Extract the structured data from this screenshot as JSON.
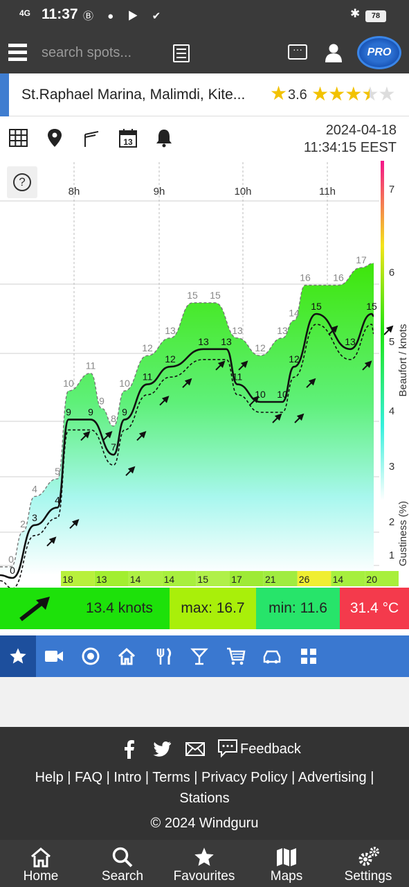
{
  "status_bar": {
    "network": "4G",
    "time": "11:37",
    "battery": "78"
  },
  "header": {
    "search_placeholder": "search spots..."
  },
  "spot": {
    "name": "St.Raphael Marina, Malimdi, Kite...",
    "rating": "3.6",
    "stars_full": 3,
    "stars_half": 1,
    "stars_empty": 1
  },
  "datetime": {
    "date": "2024-04-18",
    "time": "11:34:15 EEST"
  },
  "chart_data": {
    "type": "area",
    "xlabel": "",
    "ylabel": "Beaufort / knots",
    "y2label": "Gustiness (%)",
    "x_ticks": [
      "8h",
      "9h",
      "10h",
      "11h"
    ],
    "beaufort_ticks": [
      "1",
      "2",
      "3",
      "4",
      "5",
      "6",
      "7"
    ],
    "series": [
      {
        "name": "gust",
        "values": [
          0,
          2,
          4,
          5,
          10,
          11,
          9,
          8,
          10,
          12,
          13,
          15,
          15,
          13,
          12,
          13,
          14,
          16,
          16,
          17
        ]
      },
      {
        "name": "avg",
        "values": [
          0,
          3,
          4,
          9,
          9,
          7,
          9,
          11,
          12,
          13,
          13,
          11,
          10,
          10,
          12,
          15,
          13,
          15
        ]
      }
    ],
    "gust_labels": [
      "0",
      "2",
      "4",
      "5",
      "10",
      "11",
      "9",
      "8",
      "10",
      "12",
      "13",
      "15",
      "15",
      "13",
      "12",
      "13",
      "14",
      "16",
      "16",
      "17"
    ],
    "avg_labels": [
      "0",
      "3",
      "4",
      "9",
      "9",
      "7",
      "9",
      "11",
      "12",
      "13",
      "13",
      "11",
      "10",
      "10",
      "12",
      "15",
      "13",
      "15"
    ],
    "gustiness_values": [
      "18",
      "13",
      "14",
      "14",
      "15",
      "17",
      "21",
      "26",
      "14",
      "20"
    ],
    "help_label": "?"
  },
  "summary": {
    "speed": "13.4 knots",
    "max": "max: 16.7",
    "min": "min: 11.6",
    "temp": "31.4 °C"
  },
  "footer": {
    "feedback": "Feedback",
    "links_line1": "Help | FAQ | Intro | Terms | Privacy Policy | Advertising |",
    "links_line2": "Stations",
    "copyright": "© 2024 Windguru"
  },
  "bottom_nav": {
    "home": "Home",
    "search": "Search",
    "favourites": "Favourites",
    "maps": "Maps",
    "settings": "Settings"
  },
  "colors": {
    "dark": "#3a3a3a",
    "blue": "#3a78d0",
    "green": "#1de10a",
    "red": "#f43a4c"
  }
}
